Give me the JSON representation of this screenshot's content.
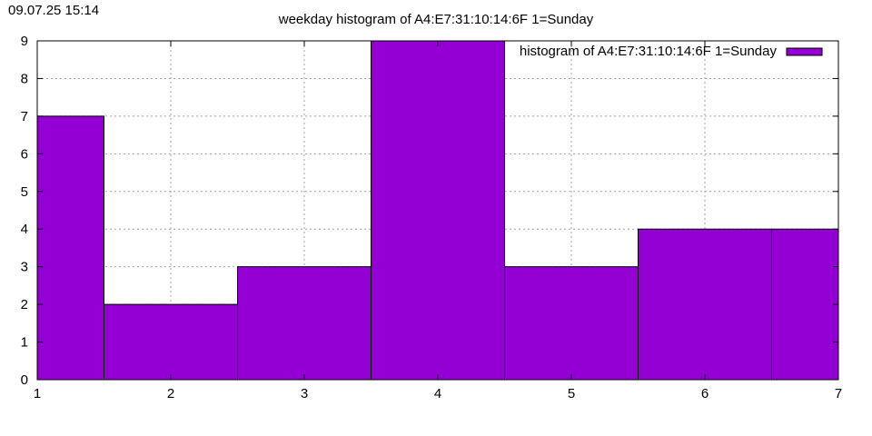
{
  "timestamp": "09.07.25 15:14",
  "chart_data": {
    "type": "bar",
    "title": "weekday histogram of A4:E7:31:10:14:6F 1=Sunday",
    "xlabel": "",
    "ylabel": "",
    "categories": [
      1,
      2,
      3,
      4,
      5,
      6,
      7
    ],
    "series": [
      {
        "name": "histogram of A4:E7:31:10:14:6F 1=Sunday",
        "values": [
          7,
          2,
          3,
          9,
          3,
          4,
          4
        ]
      }
    ],
    "xlim": [
      1,
      7
    ],
    "ylim": [
      0,
      9
    ],
    "xticks": [
      "1",
      "2",
      "3",
      "4",
      "5",
      "6",
      "7"
    ],
    "yticks": [
      "0",
      "1",
      "2",
      "3",
      "4",
      "5",
      "6",
      "7",
      "8",
      "9"
    ],
    "grid": true,
    "legend_position": "top-right",
    "bar_color": "#9400d3",
    "border_color": "#000000",
    "grid_color": "#a0a0a0"
  }
}
